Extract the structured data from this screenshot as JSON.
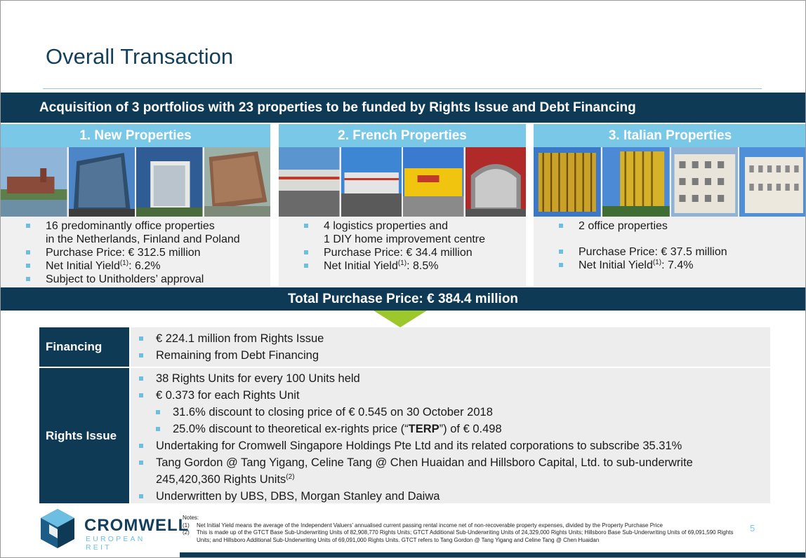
{
  "title": "Overall Transaction",
  "headline": "Acquisition of 3 portfolios with 23 properties to be funded by Rights Issue and Debt Financing",
  "portfolios": [
    {
      "heading": "1. New Properties",
      "bullets": [
        "16 predominantly office properties",
        "in the Netherlands, Finland and Poland",
        "Purchase Price: € 312.5 million",
        "Net Initial Yield",
        "(1)",
        ": 6.2%",
        "Subject to Unitholders’ approval"
      ]
    },
    {
      "heading": "2. French Properties",
      "bullets": [
        "4 logistics properties and",
        "1 DIY home improvement centre",
        "Purchase Price: € 34.4 million",
        "Net Initial Yield",
        "(1)",
        ": 8.5%"
      ]
    },
    {
      "heading": "3. Italian Properties",
      "bullets": [
        "2 office properties",
        "Purchase Price: € 37.5 million",
        "Net Initial Yield",
        "(1)",
        ": 7.4%"
      ]
    }
  ],
  "total": "Total Purchase Price: € 384.4 million",
  "financing": {
    "label": "Financing",
    "items": [
      "€ 224.1 million from Rights Issue",
      "Remaining from Debt Financing"
    ]
  },
  "rights": {
    "label": "Rights Issue",
    "items": [
      "38 Rights Units for every 100 Units held",
      "€ 0.373 for each Rights Unit",
      "31.6% discount to closing price of € 0.545 on 30 October 2018",
      "25.0% discount to theoretical ex-rights price (“",
      "TERP",
      "”) of € 0.498",
      "Undertaking for Cromwell Singapore Holdings Pte Ltd and its related corporations to subscribe 35.31%",
      "Tang Gordon @ Tang Yigang, Celine Tang @ Chen Huaidan and Hillsboro Capital, Ltd. to sub-underwrite",
      "245,420,360 Rights Units",
      "(2)",
      "Underwritten by UBS, DBS, Morgan Stanley and Daiwa"
    ]
  },
  "logo": {
    "name": "CROMWELL",
    "sub": "EUROPEAN REIT"
  },
  "notes": {
    "heading": "Notes:",
    "n1": "(1)",
    "t1": "Net Initial Yield means the average of the Independent Valuers’ annualised current passing rental income net of non-recoverable property expenses, divided by the Property Purchase Price",
    "n2": "(2)",
    "t2": "This is made up of the GTCT Base Sub-Underwriting Units of 82,908,770 Rights Units; GTCT Additional Sub-Underwriting Units of 24,329,000 Rights Units; Hillsboro Base Sub-Underwriting Units of 69,091,590 Rights Units; and Hillsboro Additional Sub-Underwriting Units of 69,091,000 Rights Units. GTCT refers to Tang Gordon @ Tang Yigang and Celine Tang @ Chen Huaidan"
  },
  "page_number": "5",
  "colors": {
    "navy": "#0f3a56",
    "light_blue": "#7ac8e8",
    "bullet": "#6cbfe3",
    "arrow_green": "#9cc82b",
    "panel": "#f0f0f1"
  }
}
